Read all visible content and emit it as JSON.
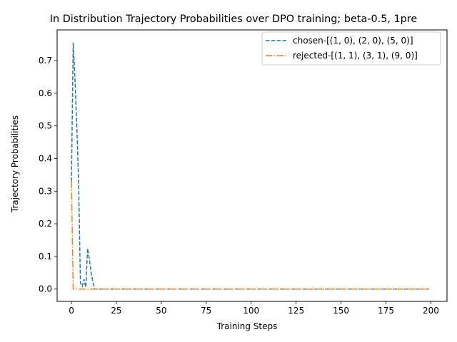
{
  "chart_data": {
    "type": "line",
    "title": "In Distribution Trajectory Probabilities over DPO training;  beta-0.5, 1pre",
    "xlabel": "Training Steps",
    "ylabel": "Trajectory Probabilities",
    "xlim": [
      -7.95,
      208.95
    ],
    "ylim": [
      -0.0378,
      0.794
    ],
    "xticks": [
      0,
      25,
      50,
      75,
      100,
      125,
      150,
      175,
      200
    ],
    "yticks": [
      0.0,
      0.1,
      0.2,
      0.3,
      0.4,
      0.5,
      0.6,
      0.7
    ],
    "ytick_labels": [
      "0.0",
      "0.1",
      "0.2",
      "0.3",
      "0.4",
      "0.5",
      "0.6",
      "0.7"
    ],
    "grid": false,
    "legend_position": "top-right",
    "series": [
      {
        "name": "chosen-[(1, 0), (2, 0), (5, 0)]",
        "color": "#1f77b4",
        "dash": "dashed",
        "x": [
          0,
          1,
          2,
          3,
          4,
          5,
          6,
          7,
          8,
          9,
          10,
          11,
          12,
          13,
          14,
          20,
          50,
          100,
          150,
          199
        ],
        "y": [
          0.33,
          0.755,
          0.64,
          0.5,
          0.33,
          0.02,
          0.008,
          0.03,
          0.005,
          0.125,
          0.09,
          0.05,
          0.02,
          0.0,
          0.0,
          0.0,
          0.0,
          0.0,
          0.0,
          0.0
        ]
      },
      {
        "name": "rejected-[(1, 1), (3, 1), (9, 0)]",
        "color": "#ff7f0e",
        "dash": "dashdot",
        "x": [
          0,
          1,
          2,
          5,
          50,
          100,
          150,
          199
        ],
        "y": [
          0.33,
          0.0,
          0.0,
          0.0,
          0.0,
          0.0,
          0.0,
          0.0
        ]
      }
    ]
  }
}
